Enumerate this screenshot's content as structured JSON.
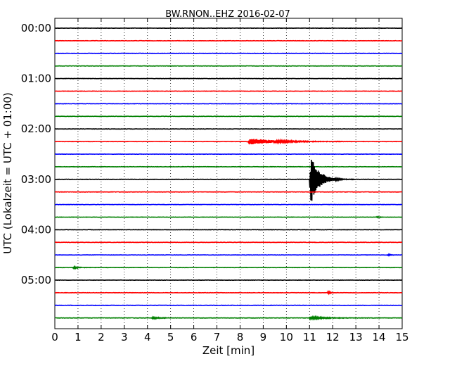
{
  "chart_data": {
    "type": "line",
    "title": "BW.RNON..EHZ 2016-02-07",
    "xlabel": "Zeit  [min]",
    "ylabel": "UTC (Lokalzeit = UTC + 01:00)",
    "xlim": [
      0,
      15
    ],
    "x_ticks": [
      "0",
      "1",
      "2",
      "3",
      "4",
      "5",
      "6",
      "7",
      "8",
      "9",
      "10",
      "11",
      "12",
      "13",
      "14",
      "15"
    ],
    "y_ticks": [
      "00:00",
      "01:00",
      "02:00",
      "03:00",
      "04:00",
      "05:00"
    ],
    "grid": true,
    "series_colors": [
      "#000000",
      "#ff0000",
      "#0000ff",
      "#008000"
    ],
    "traces": [
      {
        "start": "00:00",
        "color": "#000000",
        "events": []
      },
      {
        "start": "00:15",
        "color": "#ff0000",
        "events": []
      },
      {
        "start": "00:30",
        "color": "#0000ff",
        "events": []
      },
      {
        "start": "00:45",
        "color": "#008000",
        "events": []
      },
      {
        "start": "01:00",
        "color": "#000000",
        "events": []
      },
      {
        "start": "01:15",
        "color": "#ff0000",
        "events": []
      },
      {
        "start": "01:30",
        "color": "#0000ff",
        "events": []
      },
      {
        "start": "01:45",
        "color": "#008000",
        "events": []
      },
      {
        "start": "02:00",
        "color": "#000000",
        "events": []
      },
      {
        "start": "02:15",
        "color": "#ff0000",
        "events": [
          {
            "t": 8.4,
            "amp": 0.35,
            "decay": 1.2
          }
        ]
      },
      {
        "start": "02:30",
        "color": "#0000ff",
        "events": []
      },
      {
        "start": "02:45",
        "color": "#008000",
        "events": []
      },
      {
        "start": "03:00",
        "color": "#000000",
        "events": [
          {
            "t": 11.05,
            "amp": 2.8,
            "decay": 0.35
          }
        ]
      },
      {
        "start": "03:15",
        "color": "#ff0000",
        "events": []
      },
      {
        "start": "03:30",
        "color": "#0000ff",
        "events": []
      },
      {
        "start": "03:45",
        "color": "#008000",
        "events": [
          {
            "t": 13.9,
            "amp": 0.08,
            "decay": 0.2
          }
        ]
      },
      {
        "start": "04:00",
        "color": "#000000",
        "events": []
      },
      {
        "start": "04:15",
        "color": "#ff0000",
        "events": []
      },
      {
        "start": "04:30",
        "color": "#0000ff",
        "events": [
          {
            "t": 14.4,
            "amp": 0.08,
            "decay": 0.2
          }
        ]
      },
      {
        "start": "04:45",
        "color": "#008000",
        "events": [
          {
            "t": 0.8,
            "amp": 0.12,
            "decay": 0.2
          }
        ]
      },
      {
        "start": "05:00",
        "color": "#000000",
        "events": []
      },
      {
        "start": "05:15",
        "color": "#ff0000",
        "events": [
          {
            "t": 11.8,
            "amp": 0.15,
            "decay": 0.1
          }
        ]
      },
      {
        "start": "05:30",
        "color": "#0000ff",
        "events": []
      },
      {
        "start": "05:45",
        "color": "#008000",
        "events": [
          {
            "t": 4.2,
            "amp": 0.1,
            "decay": 0.4
          },
          {
            "t": 11.0,
            "amp": 0.12,
            "decay": 0.9
          }
        ]
      }
    ]
  }
}
